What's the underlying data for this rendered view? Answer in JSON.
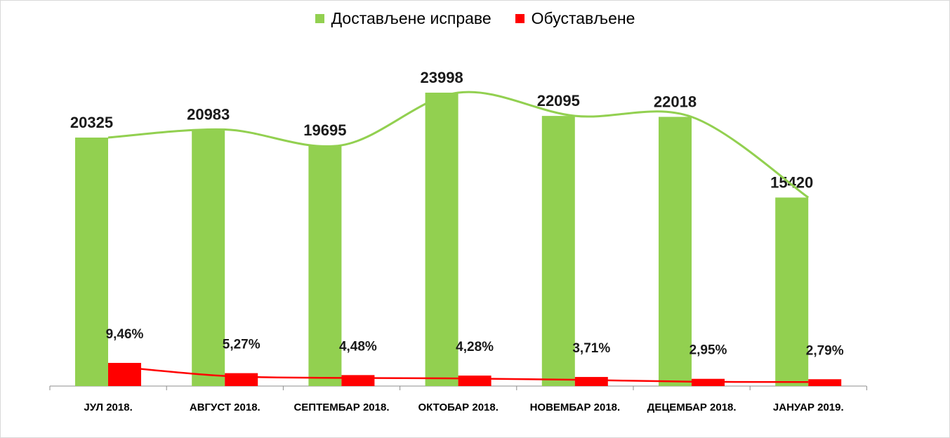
{
  "chart_data": {
    "type": "bar",
    "categories": [
      "ЈУЛ 2018.",
      "АВГУСТ 2018.",
      "СЕПТЕМБАР 2018.",
      "ОКТОБАР 2018.",
      "НОВЕМБАР 2018.",
      "ДЕЦЕМБАР 2018.",
      "ЈАНУАР 2019."
    ],
    "series": [
      {
        "name": "Достављене исправе",
        "values": [
          20325,
          20983,
          19695,
          23998,
          22095,
          22018,
          15420
        ],
        "labels": [
          "20325",
          "20983",
          "19695",
          "23998",
          "22095",
          "22018",
          "15420"
        ],
        "color": "#92d050",
        "trendline": true
      },
      {
        "name": "Обустављене",
        "values": [
          9.46,
          5.27,
          4.48,
          4.28,
          3.71,
          2.95,
          2.79
        ],
        "labels": [
          "9,46%",
          "5,27%",
          "4,48%",
          "4,28%",
          "3,71%",
          "2,95%",
          "2,79%"
        ],
        "color": "#ff0000",
        "trendline": true
      }
    ],
    "legend_position": "top-center",
    "grid": false
  }
}
